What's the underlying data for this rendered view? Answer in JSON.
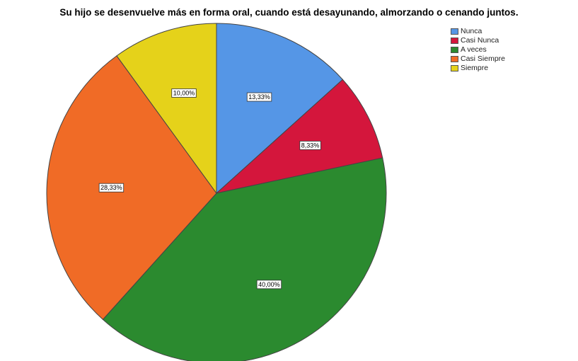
{
  "chart_data": {
    "type": "pie",
    "title": "Su hijo se desenvuelve más en forma oral, cuando está desayunando, almorzando o cenando juntos.",
    "legend_position": "top-right",
    "categories": [
      "Nunca",
      "Casi Nunca",
      "A veces",
      "Casi Siempre",
      "Siempre"
    ],
    "values": [
      13.33,
      8.33,
      40.0,
      28.33,
      10.0
    ],
    "value_labels": [
      "13,33%",
      "8,33%",
      "40,00%",
      "28,33%",
      "10,00%"
    ],
    "colors": [
      "#5596e6",
      "#d4163c",
      "#2b8a2f",
      "#f06b26",
      "#e5d21a"
    ]
  }
}
